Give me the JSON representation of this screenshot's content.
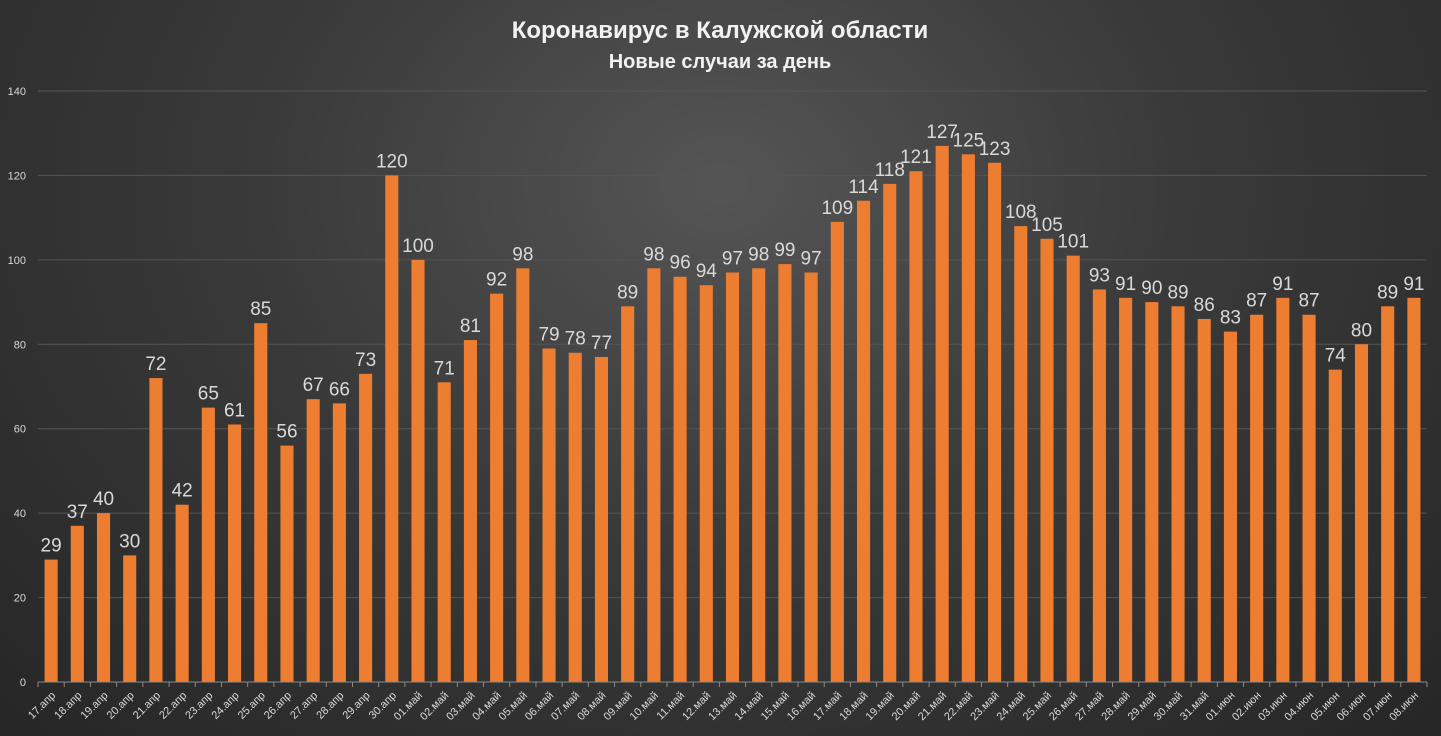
{
  "chart_data": {
    "type": "bar",
    "title": "Коронавирус в Калужской области",
    "subtitle": "Новые случаи за день",
    "xlabel": "",
    "ylabel": "",
    "ylim": [
      0,
      140
    ],
    "yticks": [
      0,
      20,
      40,
      60,
      80,
      100,
      120,
      140
    ],
    "grid": true,
    "legend": "none",
    "bar_color": "#ED7D31",
    "categories": [
      "17.апр",
      "18.апр",
      "19.апр",
      "20.апр",
      "21.апр",
      "22.апр",
      "23.апр",
      "24.апр",
      "25.апр",
      "26.апр",
      "27.апр",
      "28.апр",
      "29.апр",
      "30.апр",
      "01.май",
      "02.май",
      "03.май",
      "04.май",
      "05.май",
      "06.май",
      "07.май",
      "08.май",
      "09.май",
      "10.май",
      "11.май",
      "12.май",
      "13.май",
      "14.май",
      "15.май",
      "16.май",
      "17.май",
      "18.май",
      "19.май",
      "20.май",
      "21.май",
      "22.май",
      "23.май",
      "24.май",
      "25.май",
      "26.май",
      "27.май",
      "28.май",
      "29.май",
      "30.май",
      "31.май",
      "01.июн",
      "02.июн",
      "03.июн",
      "04.июн",
      "05.июн",
      "06.июн",
      "07.июн",
      "08.июн"
    ],
    "values": [
      29,
      37,
      40,
      30,
      72,
      42,
      65,
      61,
      85,
      56,
      67,
      66,
      73,
      120,
      100,
      71,
      81,
      92,
      98,
      79,
      78,
      77,
      89,
      98,
      96,
      94,
      97,
      98,
      99,
      97,
      109,
      114,
      118,
      121,
      127,
      125,
      123,
      108,
      105,
      101,
      93,
      91,
      90,
      89,
      86,
      83,
      87,
      91,
      87,
      74,
      80,
      89,
      91
    ]
  }
}
